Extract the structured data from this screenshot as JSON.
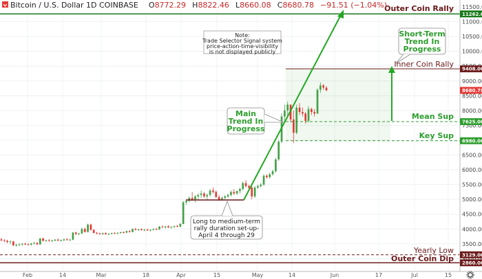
{
  "header": {
    "title": "Bitcoin / U.S. Dollar  1D  COINBASE",
    "o_label": "O",
    "o_value": "8772.29",
    "h_label": "H",
    "h_value": "8822.46",
    "l_label": "L",
    "l_value": "8660.08",
    "c_label": "C",
    "c_value": "8680.78",
    "change": "−91.51 (−1.04%)"
  },
  "chart_data": {
    "type": "candlestick",
    "title": "Bitcoin / U.S. Dollar  1D  COINBASE",
    "ylim": [
      2700,
      11800
    ],
    "y_ticks": [
      "11500.00",
      "11000.00",
      "10500.00",
      "10000.00",
      "9500.00",
      "9000.00",
      "8500.00",
      "8000.00",
      "7500.00",
      "7000.00",
      "6500.00",
      "6000.00",
      "5500.00",
      "5000.00",
      "4500.00",
      "4000.00",
      "3500.00",
      "3000.00"
    ],
    "x_ticks": [
      "Feb",
      "14",
      "Mar",
      "18",
      "Apr",
      "15",
      "May",
      "14",
      "Jun",
      "17",
      "Jul",
      "15"
    ],
    "last_price": "8680.78",
    "levels": [
      {
        "name": "Outer Coin Rally",
        "price": 11262,
        "label": "11262.00",
        "color": "#1b7a1b"
      },
      {
        "name": "Inner Coin Rally",
        "price": 9408,
        "label": "9408.00",
        "color": "#6b1a1a"
      },
      {
        "name": "Mean Sup",
        "price": 7625,
        "label": "7625.00",
        "color": "#2e9e2e"
      },
      {
        "name": "Key Sup",
        "price": 6980,
        "label": "6980.00",
        "color": "#2e9e2e"
      },
      {
        "name": "Yearly Low",
        "price": 3129,
        "label": "3129.00",
        "color": "#6b1a1a"
      },
      {
        "name": "Outer Coin Dip",
        "price": 2860,
        "label": "2860.00",
        "color": "#6b1a1a"
      }
    ],
    "annotations": {
      "note": [
        "Note:",
        "Trade Selector Signal system",
        "price-action-time-visibility",
        "is not displayed publicly"
      ],
      "short_term": [
        "Short-Term",
        "Trend In",
        "Progress"
      ],
      "main_trend": [
        "Main",
        "Trend In",
        "Progress"
      ],
      "duration": [
        "Long to medium-term",
        "rally duration set-up-",
        "April 4 through 29"
      ]
    },
    "candles": [
      [
        3650,
        3700,
        3580,
        3620
      ],
      [
        3620,
        3660,
        3560,
        3600
      ],
      [
        3600,
        3640,
        3520,
        3560
      ],
      [
        3560,
        3620,
        3500,
        3580
      ],
      [
        3580,
        3600,
        3420,
        3450
      ],
      [
        3450,
        3500,
        3400,
        3470
      ],
      [
        3470,
        3520,
        3430,
        3480
      ],
      [
        3480,
        3530,
        3440,
        3500
      ],
      [
        3500,
        3540,
        3460,
        3480
      ],
      [
        3480,
        3520,
        3450,
        3470
      ],
      [
        3470,
        3530,
        3440,
        3510
      ],
      [
        3510,
        3560,
        3480,
        3530
      ],
      [
        3530,
        3560,
        3470,
        3480
      ],
      [
        3480,
        3700,
        3470,
        3680
      ],
      [
        3680,
        3710,
        3580,
        3600
      ],
      [
        3600,
        3640,
        3560,
        3620
      ],
      [
        3620,
        3660,
        3570,
        3600
      ],
      [
        3600,
        3640,
        3560,
        3610
      ],
      [
        3610,
        3660,
        3580,
        3640
      ],
      [
        3640,
        3680,
        3590,
        3610
      ],
      [
        3610,
        3650,
        3580,
        3620
      ],
      [
        3620,
        3680,
        3590,
        3650
      ],
      [
        3650,
        3700,
        3610,
        3630
      ],
      [
        3630,
        3670,
        3600,
        3640
      ],
      [
        3640,
        3900,
        3620,
        3880
      ],
      [
        3880,
        3910,
        3800,
        3830
      ],
      [
        3830,
        3870,
        3790,
        3850
      ],
      [
        3850,
        4050,
        3830,
        4000
      ],
      [
        4000,
        4050,
        3880,
        3900
      ],
      [
        3900,
        4180,
        3880,
        4150
      ],
      [
        4150,
        4180,
        3950,
        3970
      ],
      [
        3970,
        3990,
        3850,
        3870
      ],
      [
        3870,
        3900,
        3820,
        3850
      ],
      [
        3850,
        3880,
        3800,
        3830
      ],
      [
        3830,
        3880,
        3800,
        3860
      ],
      [
        3860,
        3890,
        3810,
        3820
      ],
      [
        3820,
        3860,
        3790,
        3840
      ],
      [
        3840,
        3880,
        3810,
        3860
      ],
      [
        3860,
        3900,
        3830,
        3850
      ],
      [
        3850,
        3890,
        3820,
        3870
      ],
      [
        3870,
        3910,
        3840,
        3890
      ],
      [
        3890,
        3920,
        3850,
        3880
      ],
      [
        3880,
        3950,
        3860,
        3930
      ],
      [
        3930,
        3960,
        3880,
        3900
      ],
      [
        3900,
        4020,
        3890,
        4000
      ],
      [
        4000,
        4040,
        3950,
        3970
      ],
      [
        3970,
        4010,
        3930,
        3990
      ],
      [
        3990,
        4030,
        3950,
        3960
      ],
      [
        3960,
        4000,
        3920,
        3980
      ],
      [
        3980,
        4010,
        3940,
        3950
      ],
      [
        3950,
        3990,
        3920,
        3970
      ],
      [
        3970,
        4020,
        3950,
        4000
      ],
      [
        4000,
        4040,
        3960,
        3990
      ],
      [
        3990,
        4100,
        3970,
        4080
      ],
      [
        4080,
        4120,
        4040,
        4060
      ],
      [
        4060,
        4100,
        4020,
        4090
      ],
      [
        4090,
        4130,
        4040,
        4050
      ],
      [
        4050,
        4090,
        4010,
        4070
      ],
      [
        4070,
        4110,
        4040,
        4100
      ],
      [
        4100,
        4140,
        4060,
        4080
      ],
      [
        4080,
        4200,
        4060,
        4170
      ],
      [
        4170,
        4950,
        4160,
        4900
      ],
      [
        4900,
        5000,
        4820,
        4950
      ],
      [
        4950,
        5100,
        4900,
        5050
      ],
      [
        5050,
        5250,
        4950,
        5000
      ],
      [
        5000,
        5150,
        4900,
        5100
      ],
      [
        5100,
        5200,
        5000,
        5150
      ],
      [
        5150,
        5300,
        5050,
        5200
      ],
      [
        5200,
        5250,
        5050,
        5100
      ],
      [
        5100,
        5200,
        5000,
        5150
      ],
      [
        5150,
        5350,
        5100,
        5300
      ],
      [
        5300,
        5400,
        5200,
        5250
      ],
      [
        5250,
        5300,
        5050,
        5080
      ],
      [
        5080,
        5150,
        4950,
        5000
      ],
      [
        5000,
        5100,
        4950,
        5050
      ],
      [
        5050,
        5150,
        5000,
        5100
      ],
      [
        5100,
        5200,
        5050,
        5150
      ],
      [
        5150,
        5300,
        5100,
        5250
      ],
      [
        5250,
        5350,
        5150,
        5200
      ],
      [
        5200,
        5300,
        5150,
        5280
      ],
      [
        5280,
        5400,
        5200,
        5350
      ],
      [
        5350,
        5600,
        5300,
        5550
      ],
      [
        5550,
        5650,
        5400,
        5450
      ],
      [
        5450,
        5500,
        5350,
        5400
      ],
      [
        5400,
        5450,
        5000,
        5100
      ],
      [
        5100,
        5450,
        5050,
        5400
      ],
      [
        5400,
        5500,
        5350,
        5450
      ],
      [
        5450,
        5550,
        5400,
        5500
      ],
      [
        5500,
        5850,
        5450,
        5800
      ],
      [
        5800,
        5850,
        5700,
        5750
      ],
      [
        5750,
        5900,
        5700,
        5850
      ],
      [
        5850,
        6000,
        5800,
        5950
      ],
      [
        5950,
        6400,
        5900,
        6350
      ],
      [
        6350,
        7000,
        6300,
        6950
      ],
      [
        6950,
        7900,
        6900,
        7800
      ],
      [
        7800,
        8200,
        7600,
        8000
      ],
      [
        8000,
        8300,
        7800,
        8200
      ],
      [
        8200,
        8200,
        7600,
        7700
      ],
      [
        7700,
        8000,
        6900,
        7250
      ],
      [
        7250,
        8200,
        7200,
        8100
      ],
      [
        8100,
        8250,
        7850,
        7950
      ],
      [
        7950,
        8100,
        7800,
        7900
      ],
      [
        7900,
        7950,
        7550,
        7650
      ],
      [
        7650,
        8150,
        7600,
        8050
      ],
      [
        8050,
        8100,
        7850,
        7950
      ],
      [
        7950,
        8050,
        7800,
        7900
      ],
      [
        7900,
        8750,
        7880,
        8700
      ],
      [
        8700,
        8950,
        8600,
        8850
      ],
      [
        8850,
        8900,
        8700,
        8772
      ],
      [
        8772,
        8822,
        8660,
        8680
      ]
    ]
  }
}
